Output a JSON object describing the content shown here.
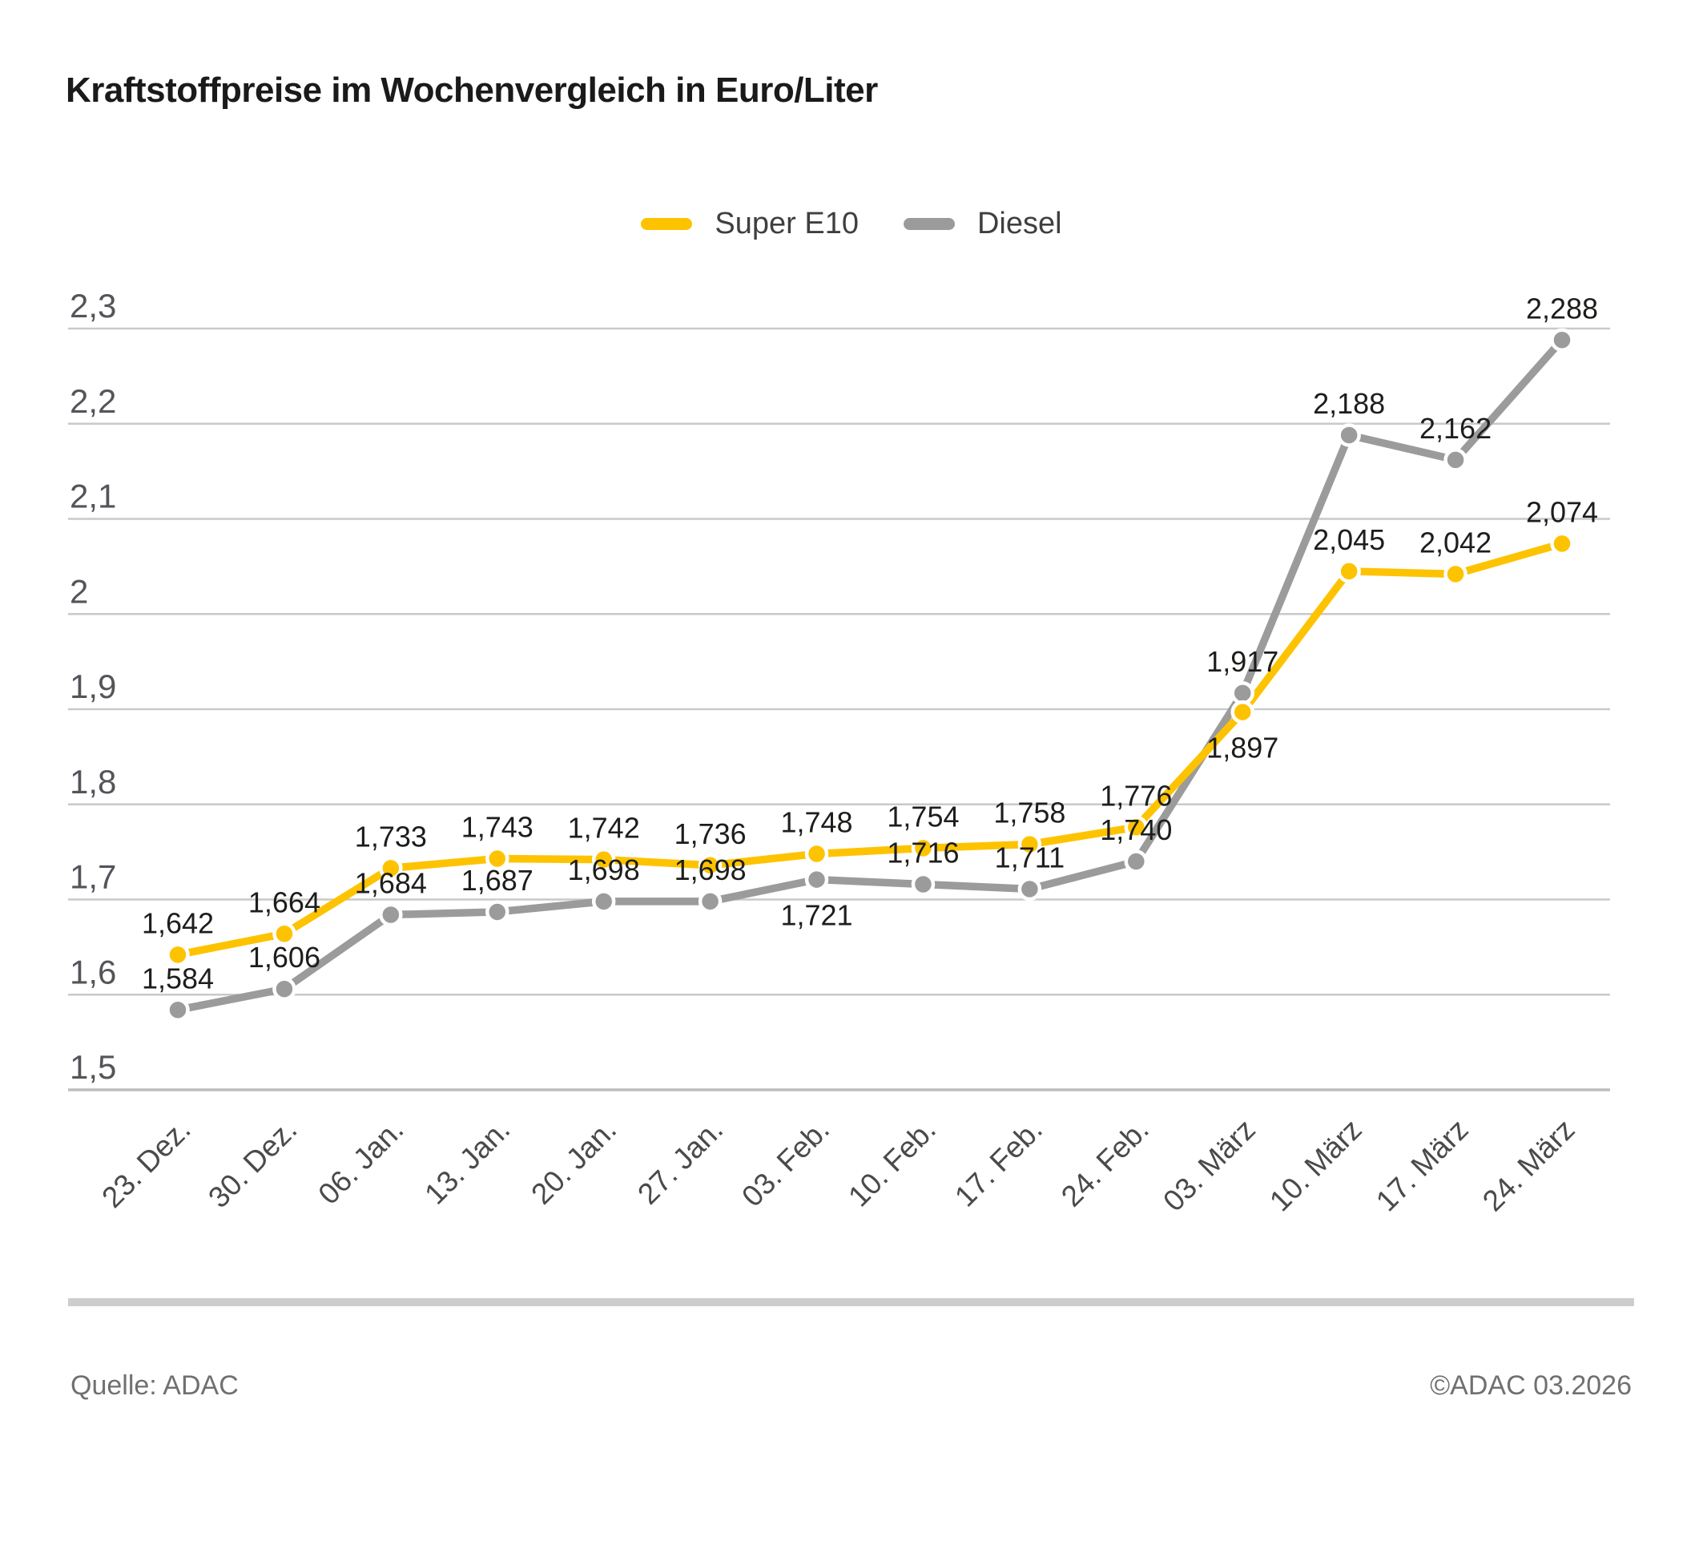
{
  "title": "Kraftstoffpreise im Wochenvergleich in Euro/Liter",
  "footer": {
    "source": "Quelle: ADAC",
    "copyright": "©ADAC 03.2026"
  },
  "colors": {
    "super_e10": "#fdc300",
    "diesel": "#9b9b9b",
    "gridline": "#c9c9c9",
    "axis_line": "#bdbdbd",
    "value_label": "#1d1d1b",
    "tick_label": "#54555a",
    "title_text": "#1a1a1a",
    "footer_text": "#707070"
  },
  "chart_data": {
    "type": "line",
    "title": "Kraftstoffpreise im Wochenvergleich in Euro/Liter",
    "xlabel": "",
    "ylabel": "Euro/Liter",
    "ylim": [
      1.5,
      2.3
    ],
    "grid": "horizontal",
    "legend_position": "top-center",
    "categories": [
      "23. Dez.",
      "30. Dez.",
      "06. Jan.",
      "13. Jan.",
      "20. Jan.",
      "27. Jan.",
      "03. Feb.",
      "10. Feb.",
      "17. Feb.",
      "24. Feb.",
      "03. März",
      "10. März",
      "17. März",
      "24. März"
    ],
    "yticks": [
      {
        "value": 1.5,
        "label": "1,5"
      },
      {
        "value": 1.6,
        "label": "1,6"
      },
      {
        "value": 1.7,
        "label": "1,7"
      },
      {
        "value": 1.8,
        "label": "1,8"
      },
      {
        "value": 1.9,
        "label": "1,9"
      },
      {
        "value": 2.0,
        "label": "2"
      },
      {
        "value": 2.1,
        "label": "2,1"
      },
      {
        "value": 2.2,
        "label": "2,2"
      },
      {
        "value": 2.3,
        "label": "2,3"
      }
    ],
    "series": [
      {
        "name": "Super E10",
        "color": "#fdc300",
        "values": [
          1.642,
          1.664,
          1.733,
          1.743,
          1.742,
          1.736,
          1.748,
          1.754,
          1.758,
          1.776,
          1.897,
          2.045,
          2.042,
          2.074
        ],
        "labels": [
          "1,642",
          "1,664",
          "1,733",
          "1,743",
          "1,742",
          "1,736",
          "1,748",
          "1,754",
          "1,758",
          "1,776",
          "1,897",
          "2,045",
          "2,042",
          "2,074"
        ],
        "label_below_indices": [
          10
        ]
      },
      {
        "name": "Diesel",
        "color": "#9b9b9b",
        "values": [
          1.584,
          1.606,
          1.684,
          1.687,
          1.698,
          1.698,
          1.721,
          1.716,
          1.711,
          1.74,
          1.917,
          2.188,
          2.162,
          2.288
        ],
        "labels": [
          "1,584",
          "1,606",
          "1,684",
          "1,687",
          "1,698",
          "1,698",
          "1,721",
          "1,716",
          "1,711",
          "1,740",
          "1,917",
          "2,188",
          "2,162",
          "2,288"
        ],
        "label_below_indices": [
          6
        ]
      }
    ]
  }
}
